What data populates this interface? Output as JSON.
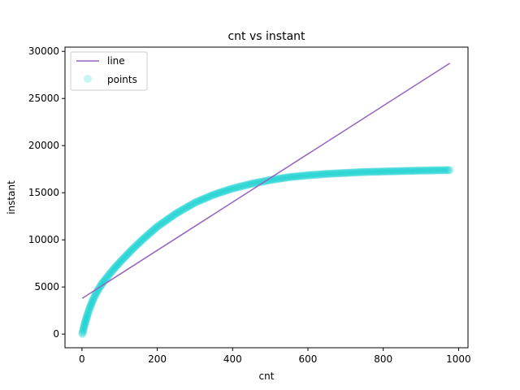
{
  "chart_data": {
    "type": "scatter",
    "title": "cnt vs instant",
    "xlabel": "cnt",
    "ylabel": "instant",
    "xlim": [
      -45,
      1025
    ],
    "ylim": [
      -1450,
      30450
    ],
    "xticks": [
      0,
      200,
      400,
      600,
      800,
      1000
    ],
    "yticks": [
      0,
      5000,
      10000,
      15000,
      20000,
      25000,
      30000
    ],
    "grid": false,
    "legend": {
      "placement": "top-left",
      "entries": [
        "line",
        "points"
      ]
    },
    "colors": {
      "line": "#9467bd",
      "points": "#00cccc"
    },
    "series": [
      {
        "name": "line",
        "type": "line",
        "x": [
          1,
          977
        ],
        "y": [
          3800,
          28750
        ]
      },
      {
        "name": "points",
        "type": "scatter",
        "curve": {
          "x": [
            1,
            2,
            5,
            10,
            15,
            20,
            30,
            40,
            50,
            60,
            80,
            100,
            130,
            160,
            200,
            250,
            300,
            350,
            400,
            450,
            500,
            550,
            600,
            650,
            700,
            750,
            800,
            850,
            900,
            977
          ],
          "y": [
            0,
            200,
            700,
            1450,
            2100,
            2700,
            3700,
            4500,
            5150,
            5700,
            6700,
            7600,
            8850,
            10000,
            11400,
            12800,
            13950,
            14800,
            15450,
            15950,
            16350,
            16650,
            16850,
            17000,
            17100,
            17200,
            17250,
            17300,
            17350,
            17400
          ]
        }
      }
    ]
  }
}
